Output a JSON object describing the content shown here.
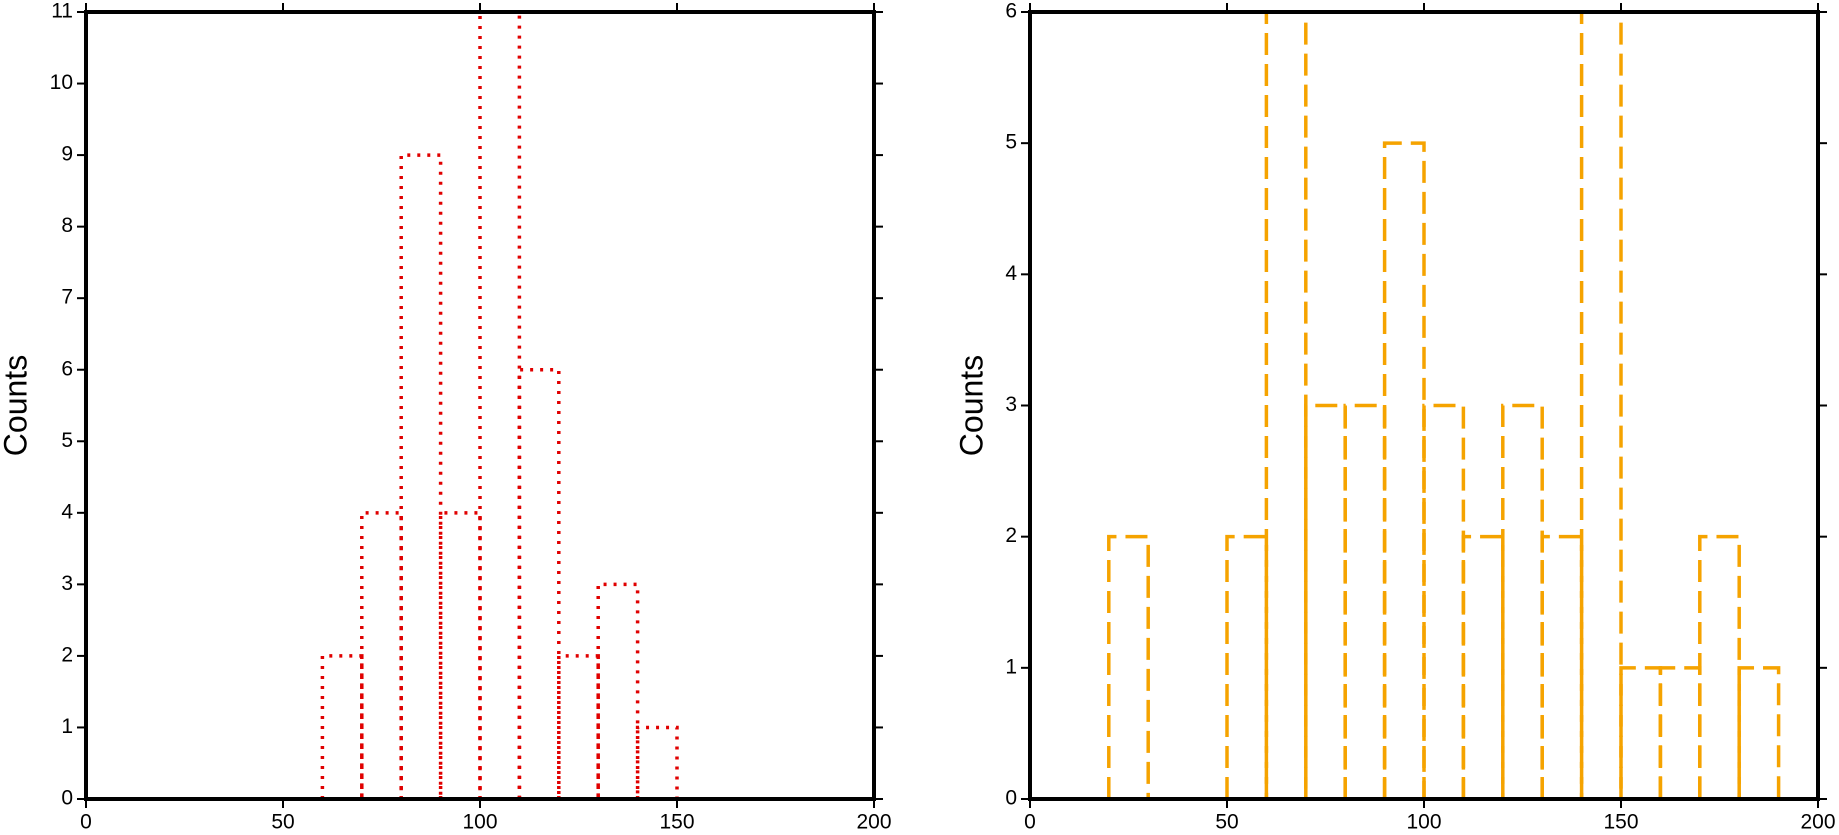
{
  "chart_data": [
    {
      "type": "histogram",
      "ylabel": "Counts",
      "bins": [
        60,
        70,
        80,
        90,
        100,
        110,
        120,
        130,
        140,
        150
      ],
      "values": [
        2,
        4,
        9,
        4,
        11,
        6,
        2,
        3,
        1
      ],
      "color": "#e00000",
      "line_style": "dotted",
      "xlim": [
        0,
        200
      ],
      "xticks": [
        0,
        50,
        100,
        150,
        200
      ],
      "ylim": [
        0,
        11
      ],
      "yticks": [
        0,
        1,
        2,
        3,
        4,
        5,
        6,
        7,
        8,
        9,
        10,
        11
      ]
    },
    {
      "type": "histogram",
      "ylabel": "Counts",
      "bins": [
        20,
        30,
        40,
        50,
        60,
        70,
        80,
        90,
        100,
        110,
        120,
        130,
        140,
        150,
        160,
        170,
        180,
        190
      ],
      "values": [
        2,
        0,
        0,
        2,
        6,
        3,
        3,
        5,
        3,
        2,
        3,
        2,
        6,
        1,
        1,
        2,
        1
      ],
      "color": "#f5a300",
      "line_style": "dashed",
      "xlim": [
        0,
        200
      ],
      "xticks": [
        0,
        50,
        100,
        150,
        200
      ],
      "ylim": [
        0,
        6
      ],
      "yticks": [
        0,
        1,
        2,
        3,
        4,
        5,
        6
      ]
    }
  ]
}
